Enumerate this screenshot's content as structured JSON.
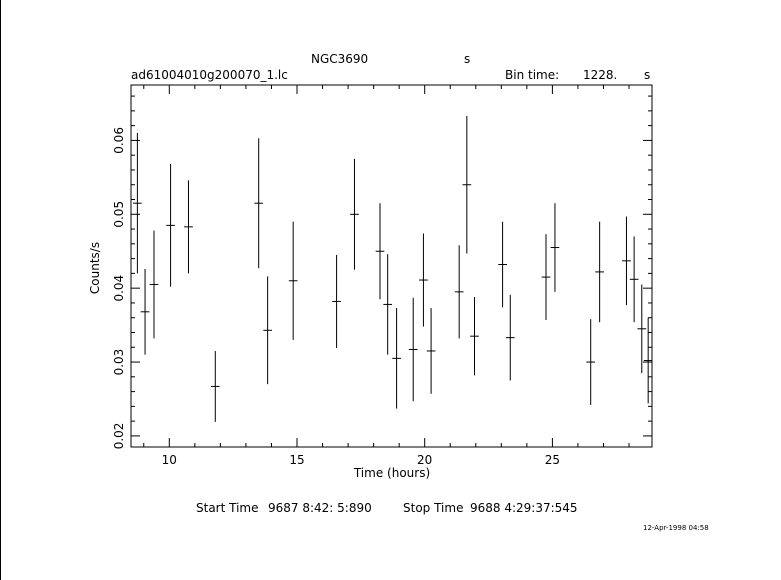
{
  "chart_data": {
    "type": "scatter",
    "title": "NGC3690",
    "title_suffix": "s",
    "filename": "ad61004010g200070_1.lc",
    "bin_time_label": "Bin time:",
    "bin_time_value": "1228.",
    "bin_time_unit": "s",
    "xlabel": "Time (hours)",
    "ylabel": "Counts/s",
    "xlim": [
      8.5,
      28.9
    ],
    "ylim": [
      0.0185,
      0.0675
    ],
    "x_ticks": [
      10,
      15,
      20,
      25
    ],
    "x_tick_labels": [
      "10",
      "15",
      "20",
      "25"
    ],
    "y_ticks": [
      0.02,
      0.03,
      0.04,
      0.05,
      0.06
    ],
    "y_tick_labels": [
      "0.02",
      "0.03",
      "0.04",
      "0.05",
      "0.06"
    ],
    "grid": false,
    "points": [
      {
        "x": 8.75,
        "y": 0.0515,
        "xerr": 0.17,
        "yerr": 0.0095
      },
      {
        "x": 9.05,
        "y": 0.0368,
        "xerr": 0.17,
        "yerr": 0.0058
      },
      {
        "x": 9.4,
        "y": 0.0405,
        "xerr": 0.17,
        "yerr": 0.0073
      },
      {
        "x": 10.05,
        "y": 0.0485,
        "xerr": 0.17,
        "yerr": 0.0083
      },
      {
        "x": 10.75,
        "y": 0.0483,
        "xerr": 0.17,
        "yerr": 0.0063
      },
      {
        "x": 11.8,
        "y": 0.0267,
        "xerr": 0.17,
        "yerr": 0.0048
      },
      {
        "x": 13.5,
        "y": 0.0515,
        "xerr": 0.17,
        "yerr": 0.0088
      },
      {
        "x": 13.85,
        "y": 0.0343,
        "xerr": 0.17,
        "yerr": 0.0073
      },
      {
        "x": 14.85,
        "y": 0.041,
        "xerr": 0.17,
        "yerr": 0.008
      },
      {
        "x": 16.55,
        "y": 0.0382,
        "xerr": 0.17,
        "yerr": 0.0063
      },
      {
        "x": 17.25,
        "y": 0.05,
        "xerr": 0.17,
        "yerr": 0.0075
      },
      {
        "x": 18.25,
        "y": 0.045,
        "xerr": 0.17,
        "yerr": 0.0065
      },
      {
        "x": 18.55,
        "y": 0.0378,
        "xerr": 0.17,
        "yerr": 0.0068
      },
      {
        "x": 18.9,
        "y": 0.0305,
        "xerr": 0.17,
        "yerr": 0.0068
      },
      {
        "x": 19.55,
        "y": 0.0317,
        "xerr": 0.17,
        "yerr": 0.007
      },
      {
        "x": 19.95,
        "y": 0.0411,
        "xerr": 0.17,
        "yerr": 0.0063
      },
      {
        "x": 20.25,
        "y": 0.0315,
        "xerr": 0.17,
        "yerr": 0.0058
      },
      {
        "x": 21.35,
        "y": 0.0395,
        "xerr": 0.17,
        "yerr": 0.0063
      },
      {
        "x": 21.65,
        "y": 0.054,
        "xerr": 0.17,
        "yerr": 0.0093
      },
      {
        "x": 21.95,
        "y": 0.0335,
        "xerr": 0.17,
        "yerr": 0.0053
      },
      {
        "x": 23.05,
        "y": 0.0432,
        "xerr": 0.17,
        "yerr": 0.0058
      },
      {
        "x": 23.35,
        "y": 0.0333,
        "xerr": 0.17,
        "yerr": 0.0058
      },
      {
        "x": 24.75,
        "y": 0.0415,
        "xerr": 0.17,
        "yerr": 0.0058
      },
      {
        "x": 25.1,
        "y": 0.0455,
        "xerr": 0.17,
        "yerr": 0.006
      },
      {
        "x": 26.5,
        "y": 0.03,
        "xerr": 0.17,
        "yerr": 0.0058
      },
      {
        "x": 26.85,
        "y": 0.0422,
        "xerr": 0.17,
        "yerr": 0.0068
      },
      {
        "x": 27.9,
        "y": 0.0437,
        "xerr": 0.17,
        "yerr": 0.006
      },
      {
        "x": 28.2,
        "y": 0.0412,
        "xerr": 0.17,
        "yerr": 0.0058
      },
      {
        "x": 28.5,
        "y": 0.0345,
        "xerr": 0.17,
        "yerr": 0.006
      },
      {
        "x": 28.75,
        "y": 0.0302,
        "xerr": 0.17,
        "yerr": 0.0058
      }
    ]
  },
  "footer": {
    "start_label": "Start Time",
    "start_value": "9687  8:42: 5:890",
    "stop_label": "Stop Time",
    "stop_value": "9688  4:29:37:545",
    "timestamp": "12-Apr-1998 04:58"
  }
}
